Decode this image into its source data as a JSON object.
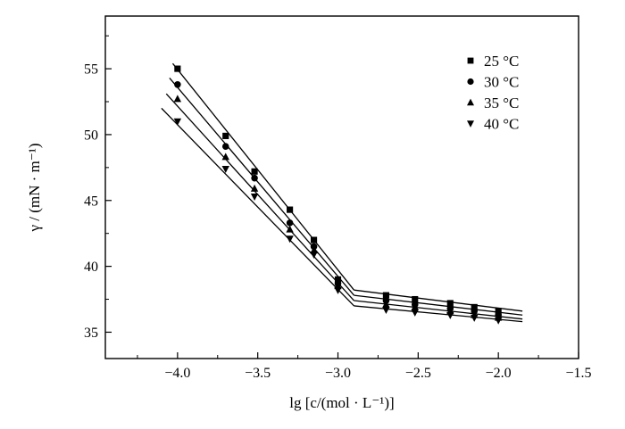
{
  "chart_data": {
    "type": "scatter",
    "title": "",
    "xlabel": "lg [c/(mol · L⁻¹)]",
    "ylabel": "γ / (mN · m⁻¹)",
    "xlim": [
      -4.45,
      -1.5
    ],
    "ylim": [
      33.0,
      59.0
    ],
    "x_ticks": [
      -4.0,
      -3.5,
      -3.0,
      -2.5,
      -2.0,
      -1.5
    ],
    "x_tick_labels": [
      "−4.0",
      "−3.5",
      "−3.0",
      "−2.5",
      "−2.0",
      "−1.5"
    ],
    "y_ticks": [
      35,
      40,
      45,
      50,
      55
    ],
    "y_tick_labels": [
      "35",
      "40",
      "45",
      "50",
      "55"
    ],
    "legend_position": "top-right",
    "x": [
      -4.0,
      -3.7,
      -3.52,
      -3.3,
      -3.15,
      -3.0,
      -2.7,
      -2.52,
      -2.3,
      -2.15,
      -2.0
    ],
    "series": [
      {
        "name": "25 °C",
        "marker": "square",
        "values": [
          55.0,
          49.9,
          47.2,
          44.3,
          42.0,
          39.0,
          37.8,
          37.5,
          37.2,
          36.9,
          36.6
        ],
        "fit_lines": [
          {
            "x": [
              -4.03,
              -2.9
            ],
            "y": [
              55.4,
              38.2
            ]
          },
          {
            "x": [
              -2.9,
              -1.85
            ],
            "y": [
              38.2,
              36.6
            ]
          }
        ]
      },
      {
        "name": "30 °C",
        "marker": "circle",
        "values": [
          53.8,
          49.1,
          46.7,
          43.3,
          41.5,
          38.7,
          37.4,
          37.1,
          36.8,
          36.6,
          36.3
        ],
        "fit_lines": [
          {
            "x": [
              -4.05,
              -2.9
            ],
            "y": [
              54.3,
              37.8
            ]
          },
          {
            "x": [
              -2.9,
              -1.85
            ],
            "y": [
              37.8,
              36.3
            ]
          }
        ]
      },
      {
        "name": "35 °C",
        "marker": "triangle-up",
        "values": [
          52.7,
          48.3,
          45.9,
          42.8,
          41.2,
          38.5,
          37.1,
          36.9,
          36.6,
          36.3,
          36.1
        ],
        "fit_lines": [
          {
            "x": [
              -4.07,
              -2.9
            ],
            "y": [
              53.1,
              37.4
            ]
          },
          {
            "x": [
              -2.9,
              -1.85
            ],
            "y": [
              37.4,
              36.0
            ]
          }
        ]
      },
      {
        "name": "40 °C",
        "marker": "triangle-down",
        "values": [
          51.0,
          47.4,
          45.3,
          42.1,
          40.9,
          38.2,
          36.7,
          36.5,
          36.3,
          36.1,
          35.9
        ],
        "fit_lines": [
          {
            "x": [
              -4.1,
              -2.9
            ],
            "y": [
              52.0,
              37.0
            ]
          },
          {
            "x": [
              -2.9,
              -1.85
            ],
            "y": [
              37.0,
              35.8
            ]
          }
        ]
      }
    ]
  }
}
